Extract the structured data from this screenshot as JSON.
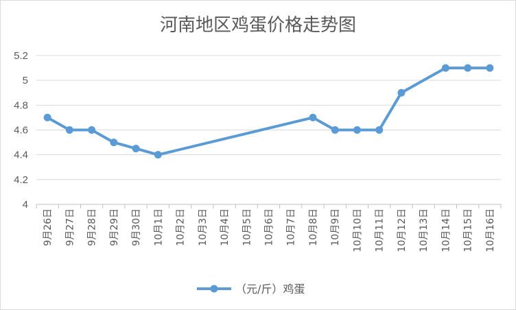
{
  "chart_data": {
    "type": "line",
    "title": "河南地区鸡蛋价格走势图",
    "xlabel": "",
    "ylabel": "",
    "ylim": [
      4,
      5.2
    ],
    "yticks": [
      "4",
      "4.2",
      "4.4",
      "4.6",
      "4.8",
      "5",
      "5.2"
    ],
    "grid": true,
    "legend_position": "bottom",
    "categories": [
      "9月26日",
      "9月27日",
      "9月28日",
      "9月29日",
      "9月30日",
      "10月1日",
      "10月2日",
      "10月3日",
      "10月4日",
      "10月5日",
      "10月6日",
      "10月7日",
      "10月8日",
      "10月9日",
      "10月10日",
      "10月11日",
      "10月12日",
      "10月13日",
      "10月14日",
      "10月15日",
      "10月16日"
    ],
    "series": [
      {
        "name": "（元/斤）鸡蛋",
        "color": "#5b9bd5",
        "values": [
          4.7,
          4.6,
          4.6,
          4.5,
          4.45,
          4.4,
          null,
          null,
          null,
          null,
          null,
          null,
          4.7,
          4.6,
          4.6,
          4.6,
          4.9,
          null,
          5.1,
          5.1,
          5.1
        ]
      }
    ]
  }
}
